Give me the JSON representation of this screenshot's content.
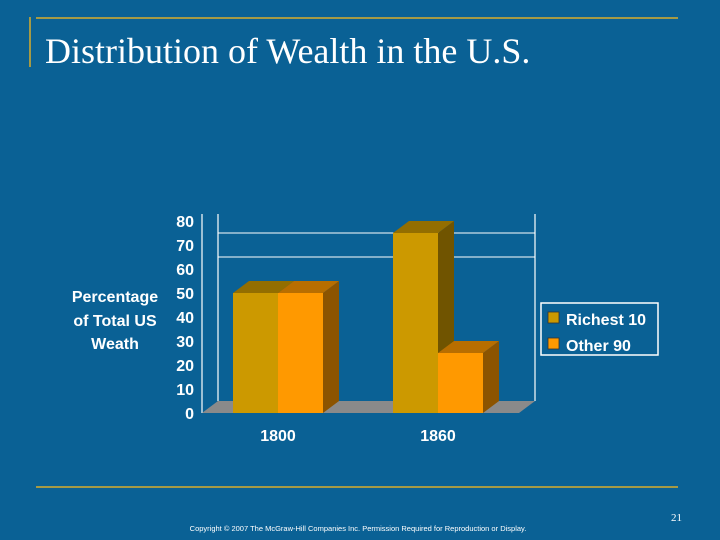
{
  "slide": {
    "title": "Distribution of Wealth in the U.S.",
    "page_number": "21",
    "copyright": "Copyright © 2007 The McGraw-Hill Companies Inc. Permission Required for Reproduction or Display."
  },
  "colors": {
    "background": "#0a6195",
    "rule": "#a59a45",
    "series_richest": "#cc9900",
    "series_other": "#ff9900",
    "floor": "#8a8a8a"
  },
  "chart_data": {
    "type": "bar",
    "style": "3d-clustered",
    "title": "",
    "xlabel": "",
    "ylabel": "Percentage\nof Total US\nWeath",
    "categories": [
      "1800",
      "1860"
    ],
    "series": [
      {
        "name": "Richest 10",
        "values": [
          50,
          75
        ],
        "color": "#cc9900"
      },
      {
        "name": "Other 90",
        "values": [
          50,
          25
        ],
        "color": "#ff9900"
      }
    ],
    "ylim": [
      0,
      80
    ],
    "yticks": [
      "0",
      "10",
      "20",
      "30",
      "40",
      "50",
      "60",
      "70",
      "80"
    ],
    "grid": "horizontal, partial",
    "legend_position": "right"
  }
}
